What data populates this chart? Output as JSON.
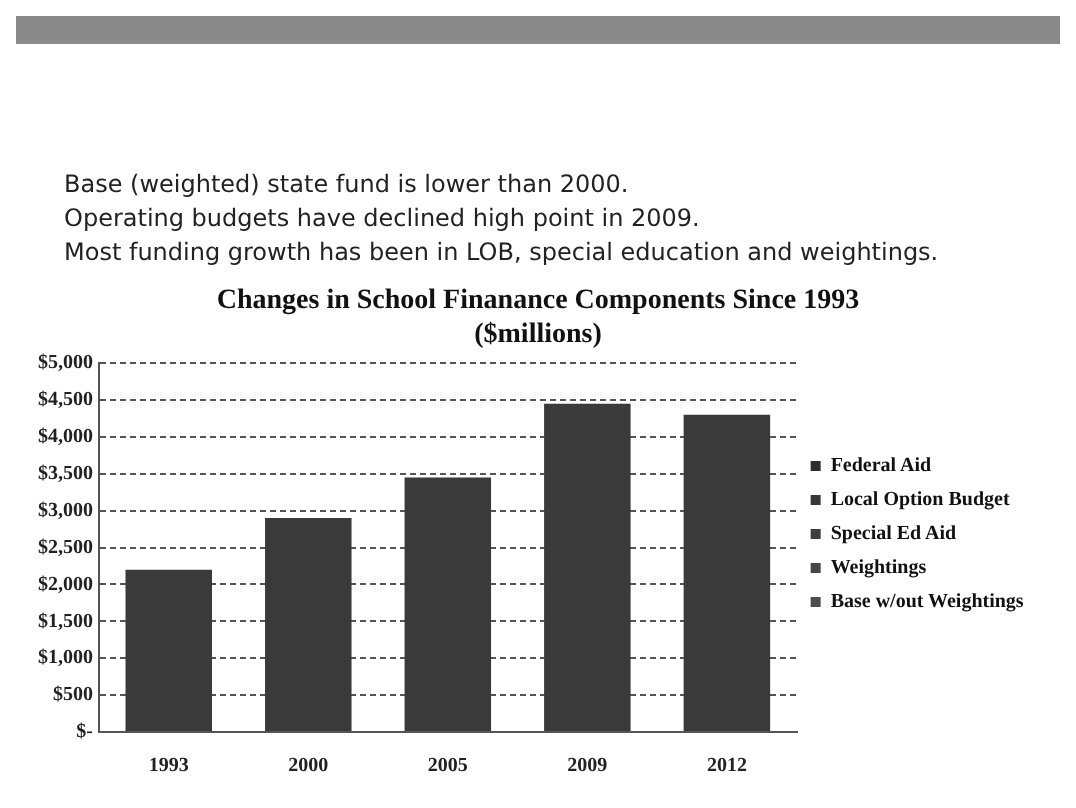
{
  "chart_data": {
    "type": "bar",
    "title": [
      "Changes in School Finanance Components Since 1993",
      "($millions)"
    ],
    "annotations": [
      "Base (weighted) state fund is lower than 2000.",
      "Operating budgets have declined high point in 2009.",
      "Most funding growth has been in LOB, special education and weightings."
    ],
    "categories": [
      "1993",
      "2000",
      "2005",
      "2009",
      "2012"
    ],
    "stacked": true,
    "series": [
      {
        "name": "Federal Aid",
        "color": "#2e2e2e",
        "values": [
          null,
          null,
          null,
          null,
          null
        ]
      },
      {
        "name": "Local Option Budget",
        "color": "#363636",
        "values": [
          null,
          null,
          null,
          null,
          null
        ]
      },
      {
        "name": "Special Ed Aid",
        "color": "#3e3e3e",
        "values": [
          null,
          null,
          null,
          null,
          null
        ]
      },
      {
        "name": "Weightings",
        "color": "#464646",
        "values": [
          null,
          null,
          null,
          null,
          null
        ]
      },
      {
        "name": "Base w/out Weightings",
        "color": "#4e4e4e",
        "values": [
          null,
          null,
          null,
          null,
          null
        ]
      },
      {
        "color": "#3a3a3a",
        "values": [
          2200,
          2900,
          3450,
          4450,
          4300
        ]
      }
    ],
    "ylim": [
      0,
      5000
    ],
    "yticks": [
      {
        "value": 0,
        "label": "$-"
      },
      {
        "value": 500,
        "label": "$500"
      },
      {
        "value": 1000,
        "label": "$1,000"
      },
      {
        "value": 1500,
        "label": "$1,500"
      },
      {
        "value": 2000,
        "label": "$2,000"
      },
      {
        "value": 2500,
        "label": "$2,500"
      },
      {
        "value": 3000,
        "label": "$3,000"
      },
      {
        "value": 3500,
        "label": "$3,500"
      },
      {
        "value": 4000,
        "label": "$4,000"
      },
      {
        "value": 4500,
        "label": "$4,500"
      },
      {
        "value": 5000,
        "label": "$5,000"
      }
    ],
    "grid": "y",
    "legend": "right"
  }
}
